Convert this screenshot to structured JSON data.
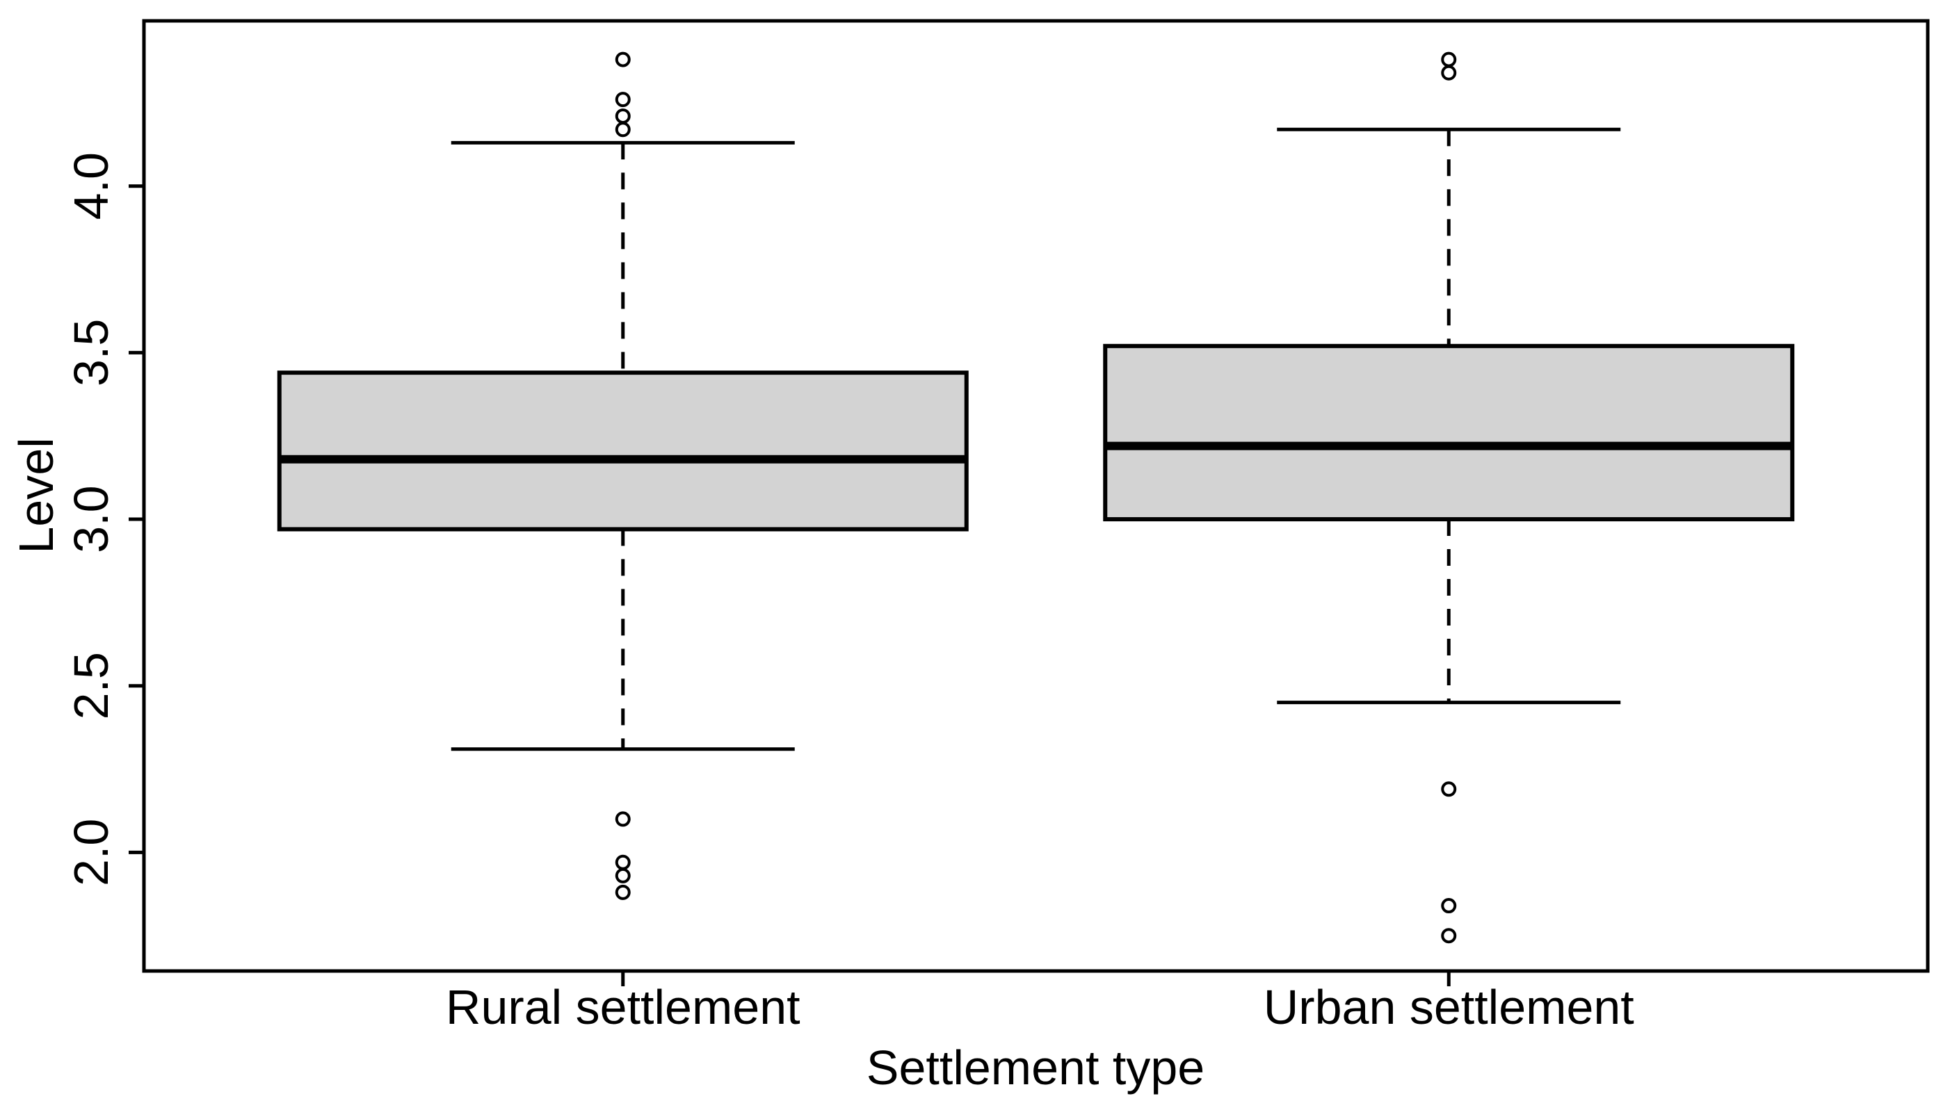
{
  "figure": {
    "background_color": "#ffffff",
    "text_color": "#000000"
  },
  "chart_data": {
    "type": "boxplot",
    "title": "",
    "xlabel": "Settlement type",
    "ylabel": "Level",
    "categories": [
      "Rural settlement",
      "Urban settlement"
    ],
    "y_ticks": [
      "2.0",
      "2.5",
      "3.0",
      "3.5",
      "4.0"
    ],
    "ylim": [
      1.644,
      4.496
    ],
    "xlim": [
      0.42,
      2.58
    ],
    "grid": false,
    "legend": "none",
    "box_fill": "#d3d3d3",
    "line_color": "#000000",
    "boxes": [
      {
        "category": "Rural settlement",
        "lower_whisker": 2.31,
        "q1": 2.97,
        "median": 3.18,
        "q3": 3.44,
        "upper_whisker": 4.13,
        "outliers": [
          4.38,
          4.26,
          4.21,
          4.17,
          2.1,
          1.97,
          1.93,
          1.88
        ]
      },
      {
        "category": "Urban settlement",
        "lower_whisker": 2.45,
        "q1": 3.0,
        "median": 3.22,
        "q3": 3.52,
        "upper_whisker": 4.17,
        "outliers": [
          4.38,
          4.34,
          2.19,
          1.84,
          1.75
        ]
      }
    ]
  }
}
